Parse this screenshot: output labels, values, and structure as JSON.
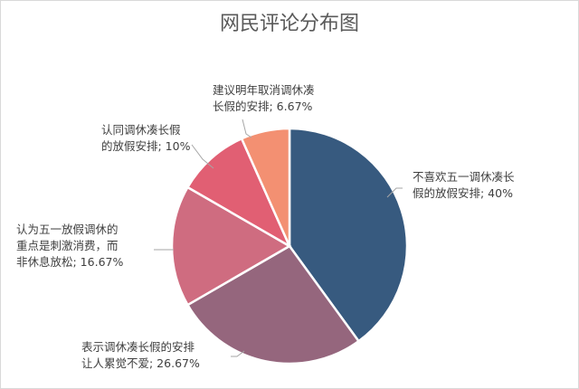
{
  "chart_data": {
    "type": "pie",
    "title": "网民评论分布图",
    "slices": [
      {
        "lines": [
          "不喜欢五一调休凑长",
          "假的放假安排; 40%"
        ],
        "value": 40,
        "color": "#375a7f"
      },
      {
        "lines": [
          "表示调休凑长假的安排",
          "让人累觉不爱; 26.67%"
        ],
        "value": 26.67,
        "color": "#95667d"
      },
      {
        "lines": [
          "认为五一放假调休的",
          "重点是刺激消费，而",
          "非休息放松; 16.67%"
        ],
        "value": 16.67,
        "color": "#cf6c80"
      },
      {
        "lines": [
          "认同调休凑长假",
          "的放假安排; 10%"
        ],
        "value": 10,
        "color": "#e15f73"
      },
      {
        "lines": [
          "建议明年取消调休凑",
          "长假的安排; 6.67%"
        ],
        "value": 6.67,
        "color": "#f39072"
      }
    ],
    "start_angle_deg": 0,
    "direction": "clockwise",
    "legend": "none"
  }
}
